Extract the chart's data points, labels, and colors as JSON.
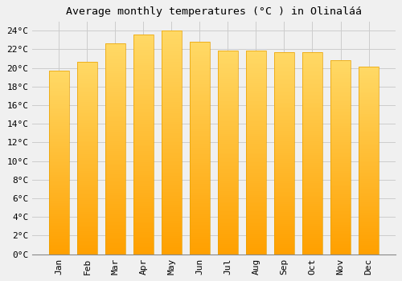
{
  "months": [
    "Jan",
    "Feb",
    "Mar",
    "Apr",
    "May",
    "Jun",
    "Jul",
    "Aug",
    "Sep",
    "Oct",
    "Nov",
    "Dec"
  ],
  "values": [
    19.7,
    20.7,
    22.6,
    23.6,
    24.0,
    22.8,
    21.9,
    21.9,
    21.7,
    21.7,
    20.8,
    20.1
  ],
  "bar_color_top": "#FFD966",
  "bar_color_bottom": "#FFA000",
  "bar_edge_color": "#E8A000",
  "background_color": "#F0F0F0",
  "grid_color": "#CCCCCC",
  "title": "Average monthly temperatures (°C ) in Olinaláá",
  "title_fontsize": 9.5,
  "tick_label_fontsize": 8,
  "ylim": [
    0,
    25
  ],
  "yticks": [
    0,
    2,
    4,
    6,
    8,
    10,
    12,
    14,
    16,
    18,
    20,
    22,
    24
  ],
  "font_family": "monospace"
}
